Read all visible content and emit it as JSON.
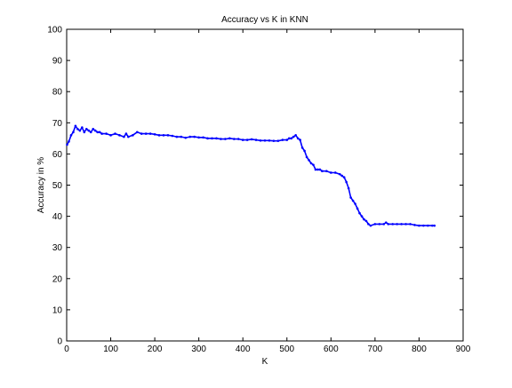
{
  "chart_data": {
    "type": "line",
    "title": "Accuracy vs K in KNN",
    "xlabel": "K",
    "ylabel": "Accuracy in %",
    "xlim": [
      0,
      900
    ],
    "ylim": [
      0,
      100
    ],
    "xticks": [
      0,
      100,
      200,
      300,
      400,
      500,
      600,
      700,
      800,
      900
    ],
    "yticks": [
      0,
      10,
      20,
      30,
      40,
      50,
      60,
      70,
      80,
      90,
      100
    ],
    "grid": false,
    "line_color": "#0000ff",
    "marker": "dot",
    "series": [
      {
        "x": [
          1,
          5,
          10,
          15,
          20,
          25,
          30,
          35,
          40,
          45,
          50,
          55,
          60,
          65,
          70,
          75,
          80,
          90,
          100,
          110,
          120,
          130,
          135,
          140,
          150,
          160,
          170,
          180,
          190,
          200,
          210,
          220,
          230,
          240,
          250,
          260,
          270,
          280,
          290,
          300,
          310,
          320,
          330,
          340,
          350,
          360,
          370,
          380,
          390,
          400,
          410,
          420,
          430,
          440,
          450,
          460,
          470,
          480,
          490,
          500,
          505,
          510,
          515,
          520,
          525,
          530,
          535,
          540,
          545,
          550,
          555,
          560,
          565,
          570,
          575,
          580,
          590,
          600,
          610,
          620,
          625,
          630,
          635,
          640,
          645,
          650,
          655,
          660,
          665,
          670,
          675,
          680,
          685,
          690,
          700,
          710,
          720,
          725,
          730,
          740,
          750,
          760,
          770,
          780,
          790,
          800,
          810,
          820,
          830,
          835
        ],
        "y": [
          63,
          64,
          66,
          67,
          69,
          68,
          67.5,
          68.5,
          67,
          68,
          67.5,
          67,
          68,
          67.5,
          67,
          67,
          66.5,
          66.5,
          66,
          66.5,
          66,
          65.5,
          66.5,
          65.5,
          66,
          67,
          66.5,
          66.5,
          66.5,
          66.3,
          66,
          66,
          66,
          65.8,
          65.5,
          65.5,
          65.2,
          65.5,
          65.5,
          65.3,
          65.3,
          65,
          65,
          65,
          64.8,
          64.8,
          65,
          64.8,
          64.8,
          64.5,
          64.5,
          64.7,
          64.5,
          64.3,
          64.3,
          64.3,
          64.2,
          64.2,
          64.5,
          64.5,
          65,
          65,
          65.5,
          66,
          65,
          64.5,
          62,
          61,
          59,
          58,
          57,
          56.5,
          55,
          55,
          55,
          54.5,
          54.5,
          54,
          54,
          53.5,
          53,
          52.5,
          51,
          49,
          46,
          45,
          44,
          42.5,
          41,
          40,
          39,
          38.5,
          37.5,
          37,
          37.5,
          37.5,
          37.5,
          38,
          37.5,
          37.5,
          37.5,
          37.5,
          37.5,
          37.5,
          37.2,
          37,
          37,
          37,
          37,
          37
        ]
      }
    ]
  }
}
